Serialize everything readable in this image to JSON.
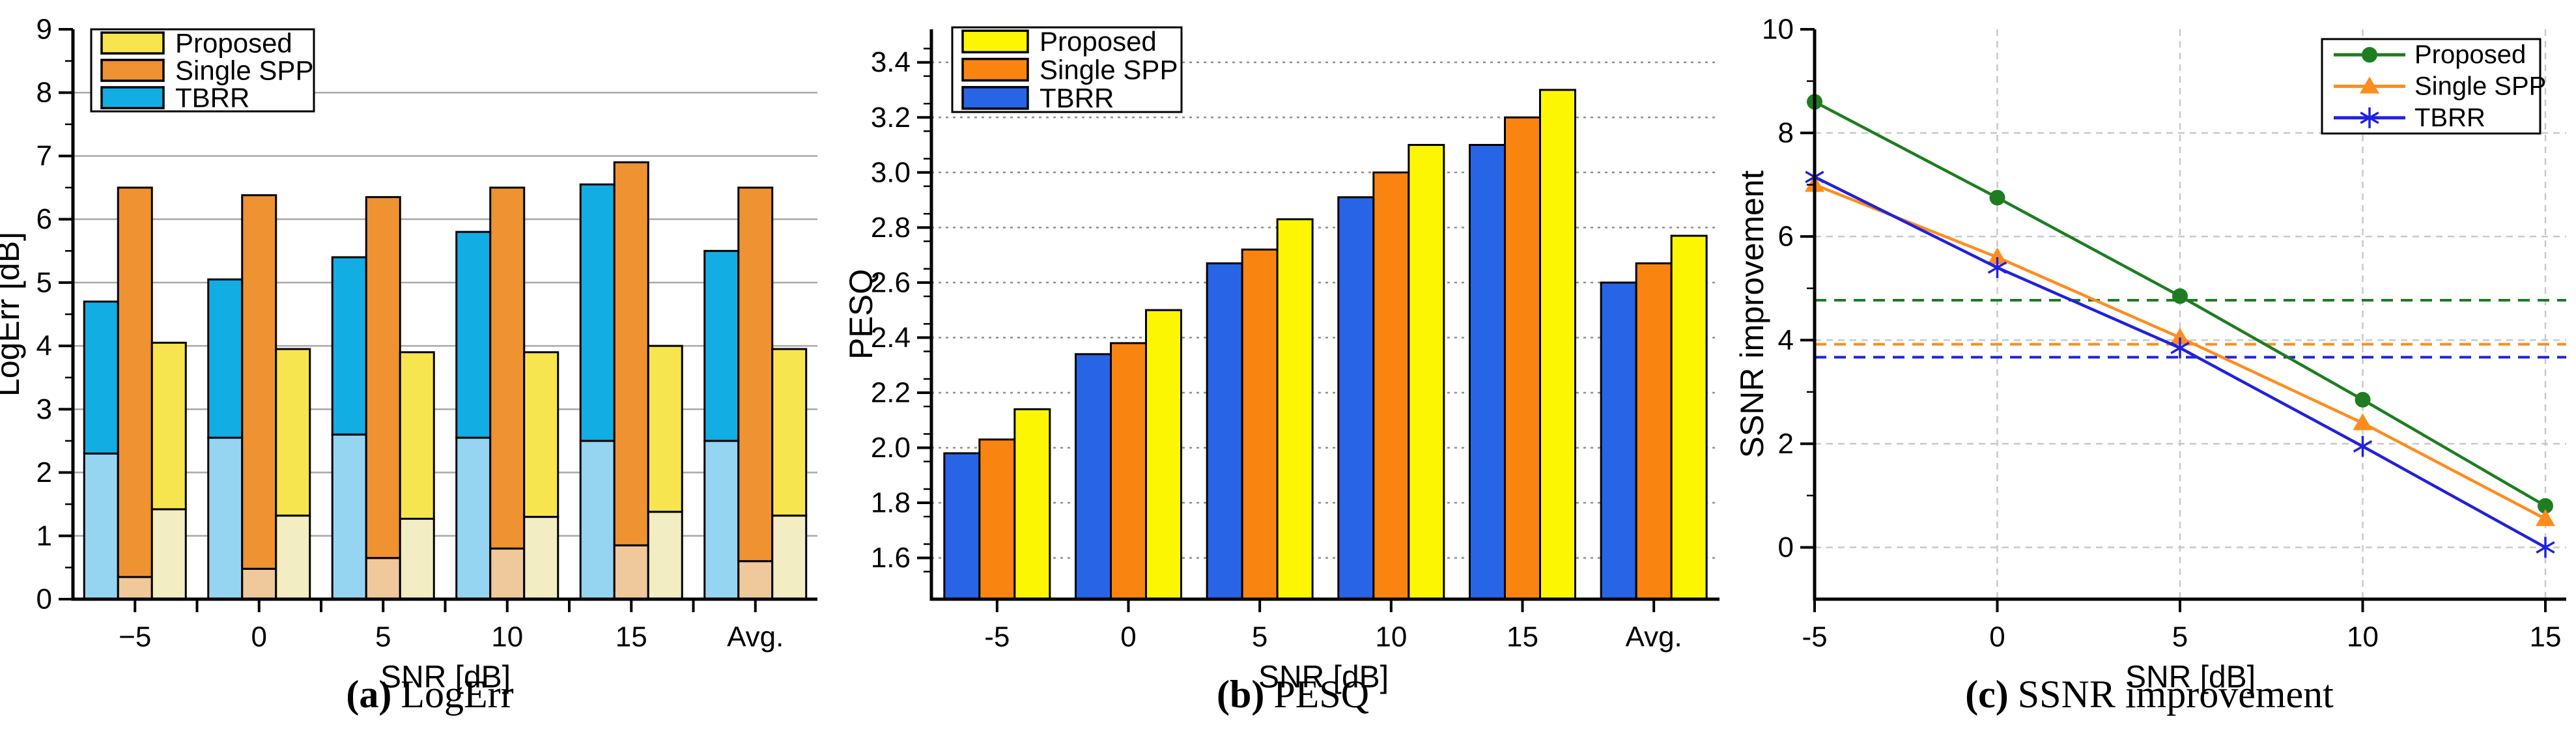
{
  "figure": {
    "captions": [
      {
        "prefix": "(a)",
        "text": "LogErr"
      },
      {
        "prefix": "(b)",
        "text": "PESQ"
      },
      {
        "prefix": "(c)",
        "text": "SSNR improvement"
      }
    ]
  },
  "chart_data": [
    {
      "id": "logerr",
      "type": "bar",
      "title": "",
      "xlabel": "SNR [dB]",
      "ylabel": "LogErr [dB]",
      "categories": [
        "−5",
        "0",
        "5",
        "10",
        "15",
        "Avg."
      ],
      "ylim": [
        0,
        9
      ],
      "yticks": [
        {
          "v": 0,
          "label": "0"
        },
        {
          "v": 1,
          "label": "1"
        },
        {
          "v": 2,
          "label": "2"
        },
        {
          "v": 3,
          "label": "3"
        },
        {
          "v": 4,
          "label": "4"
        },
        {
          "v": 5,
          "label": "5"
        },
        {
          "v": 6,
          "label": "6"
        },
        {
          "v": 7,
          "label": "7"
        },
        {
          "v": 8,
          "label": "8"
        },
        {
          "v": 9,
          "label": "9"
        }
      ],
      "grid": "solid",
      "grid_color": "#a8a8a8",
      "legend_position": "top-left",
      "legend_order": [
        "Proposed",
        "Single SPP",
        "TBRR"
      ],
      "series": [
        {
          "name": "TBRR",
          "color": "#12AEE3",
          "light_color": "#96D5F1",
          "values": [
            4.7,
            5.05,
            5.4,
            5.8,
            6.55,
            5.5
          ],
          "lower_segment": [
            2.3,
            2.55,
            2.6,
            2.55,
            2.5,
            2.5
          ]
        },
        {
          "name": "Single SPP",
          "color": "#EF9231",
          "light_color": "#EFC89B",
          "values": [
            6.5,
            6.38,
            6.35,
            6.5,
            6.9,
            6.5
          ],
          "lower_segment": [
            0.35,
            0.48,
            0.65,
            0.8,
            0.85,
            0.6
          ]
        },
        {
          "name": "Proposed",
          "color": "#F6E54F",
          "light_color": "#F2EDC2",
          "values": [
            4.05,
            3.95,
            3.9,
            3.9,
            4.0,
            3.95
          ],
          "lower_segment": [
            1.42,
            1.32,
            1.27,
            1.3,
            1.38,
            1.32
          ]
        }
      ]
    },
    {
      "id": "pesq",
      "type": "bar",
      "title": "",
      "xlabel": "SNR [dB]",
      "ylabel": "PESQ",
      "categories": [
        "-5",
        "0",
        "5",
        "10",
        "15",
        "Avg."
      ],
      "ylim": [
        1.45,
        3.52
      ],
      "yticks": [
        {
          "v": 1.6,
          "label": "1.6"
        },
        {
          "v": 1.8,
          "label": "1.8"
        },
        {
          "v": 2.0,
          "label": "2.0"
        },
        {
          "v": 2.2,
          "label": "2.2"
        },
        {
          "v": 2.4,
          "label": "2.4"
        },
        {
          "v": 2.6,
          "label": "2.6"
        },
        {
          "v": 2.8,
          "label": "2.8"
        },
        {
          "v": 3.0,
          "label": "3.0"
        },
        {
          "v": 3.2,
          "label": "3.2"
        },
        {
          "v": 3.4,
          "label": "3.4"
        }
      ],
      "grid": "dashed",
      "grid_color": "#8f8f8f",
      "legend_position": "top-left",
      "legend_order": [
        "Proposed",
        "Single SPP",
        "TBRR"
      ],
      "series": [
        {
          "name": "TBRR",
          "color": "#2865E6",
          "values": [
            1.98,
            2.34,
            2.67,
            2.91,
            3.1,
            2.6
          ]
        },
        {
          "name": "Single SPP",
          "color": "#FA8410",
          "values": [
            2.03,
            2.38,
            2.72,
            3.0,
            3.2,
            2.67
          ]
        },
        {
          "name": "Proposed",
          "color": "#FDF602",
          "values": [
            2.14,
            2.5,
            2.83,
            3.1,
            3.3,
            2.77
          ]
        }
      ]
    },
    {
      "id": "ssnr",
      "type": "line",
      "title": "",
      "xlabel": "SNR [dB]",
      "ylabel": "SSNR improvement",
      "x": [
        -5,
        0,
        5,
        10,
        15
      ],
      "xlim": [
        -5,
        15
      ],
      "xticks": [
        {
          "v": -5,
          "label": "-5"
        },
        {
          "v": 0,
          "label": "0"
        },
        {
          "v": 5,
          "label": "5"
        },
        {
          "v": 10,
          "label": "10"
        },
        {
          "v": 15,
          "label": "15"
        }
      ],
      "xgridlines": [
        0,
        5,
        10,
        15
      ],
      "ylim": [
        -1,
        10
      ],
      "yticks": [
        {
          "v": 0,
          "label": "0"
        },
        {
          "v": 2,
          "label": "2"
        },
        {
          "v": 4,
          "label": "4"
        },
        {
          "v": 6,
          "label": "6"
        },
        {
          "v": 8,
          "label": "8"
        },
        {
          "v": 10,
          "label": "10"
        }
      ],
      "grid": "dashed",
      "grid_color": "#c9c9c9",
      "legend_position": "top-right",
      "legend_order": [
        "Proposed",
        "Single SPP",
        "TBRR"
      ],
      "series": [
        {
          "name": "Proposed",
          "color": "#1E7D20",
          "marker": "circle",
          "values": [
            8.6,
            6.75,
            4.85,
            2.85,
            0.8
          ],
          "avg_line": 4.77
        },
        {
          "name": "Single SPP",
          "color": "#FF8C1E",
          "marker": "triangle",
          "values": [
            7.0,
            5.6,
            4.05,
            2.4,
            0.55
          ],
          "avg_line": 3.92
        },
        {
          "name": "TBRR",
          "color": "#2121DE",
          "marker": "asterisk",
          "values": [
            7.15,
            5.4,
            3.85,
            1.95,
            0.0
          ],
          "avg_line": 3.67
        }
      ]
    }
  ]
}
